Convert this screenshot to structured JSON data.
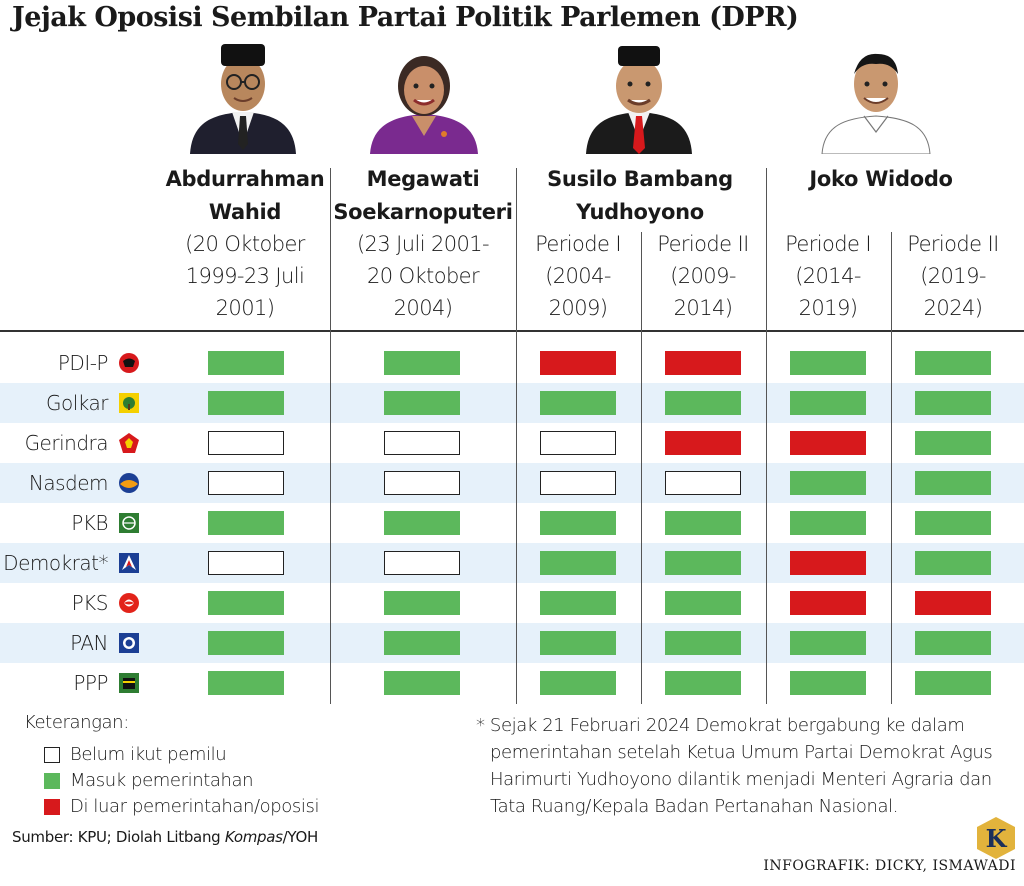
{
  "title": "Jejak Oposisi Sembilan Partai Politik Parlemen (DPR)",
  "presidents": [
    {
      "name_lines": [
        "Abdurrahman",
        "Wahid"
      ],
      "date_lines": [
        "(20 Oktober",
        "1999-23 Juli",
        "2001)"
      ]
    },
    {
      "name_lines": [
        "Megawati",
        "Soekarnoputeri"
      ],
      "date_lines": [
        "(23 Juli 2001-",
        "20 Oktober",
        "2004)"
      ]
    },
    {
      "name_lines": [
        "Susilo Bambang",
        "Yudhoyono"
      ],
      "periods": [
        {
          "label_lines": [
            "Periode I",
            "(2004-",
            "2009)"
          ]
        },
        {
          "label_lines": [
            "Periode II",
            "(2009-",
            "2014)"
          ]
        }
      ]
    },
    {
      "name_lines": [
        "Joko Widodo"
      ],
      "periods": [
        {
          "label_lines": [
            "Periode I",
            "(2014-",
            "2019)"
          ]
        },
        {
          "label_lines": [
            "Periode II",
            "(2019-",
            "2024)"
          ]
        }
      ]
    }
  ],
  "chart_data": {
    "type": "table",
    "columns": [
      "Abdurrahman Wahid (20 Oktober 1999-23 Juli 2001)",
      "Megawati Soekarnoputeri (23 Juli 2001-20 Oktober 2004)",
      "Susilo Bambang Yudhoyono Periode I (2004-2009)",
      "Susilo Bambang Yudhoyono Periode II (2009-2014)",
      "Joko Widodo Periode I (2014-2019)",
      "Joko Widodo Periode II (2019-2024)"
    ],
    "status_legend": {
      "none": "Belum ikut pemilu",
      "gov": "Masuk pemerintahan",
      "opp": "Di luar pemerintahan/oposisi"
    },
    "rows": [
      {
        "party": "PDI-P",
        "status": [
          "gov",
          "gov",
          "opp",
          "opp",
          "gov",
          "gov"
        ]
      },
      {
        "party": "Golkar",
        "status": [
          "gov",
          "gov",
          "gov",
          "gov",
          "gov",
          "gov"
        ]
      },
      {
        "party": "Gerindra",
        "status": [
          "none",
          "none",
          "none",
          "opp",
          "opp",
          "gov"
        ]
      },
      {
        "party": "Nasdem",
        "status": [
          "none",
          "none",
          "none",
          "none",
          "gov",
          "gov"
        ]
      },
      {
        "party": "PKB",
        "status": [
          "gov",
          "gov",
          "gov",
          "gov",
          "gov",
          "gov"
        ]
      },
      {
        "party": "Demokrat*",
        "status": [
          "none",
          "none",
          "gov",
          "gov",
          "opp",
          "gov"
        ]
      },
      {
        "party": "PKS",
        "status": [
          "gov",
          "gov",
          "gov",
          "gov",
          "opp",
          "opp"
        ]
      },
      {
        "party": "PAN",
        "status": [
          "gov",
          "gov",
          "gov",
          "gov",
          "gov",
          "gov"
        ]
      },
      {
        "party": "PPP",
        "status": [
          "gov",
          "gov",
          "gov",
          "gov",
          "gov",
          "gov"
        ]
      }
    ]
  },
  "colors": {
    "gov": "#5cb85c",
    "opp": "#d7191c",
    "none": "#ffffff",
    "band": "#e6f1fa",
    "border": "#222222"
  },
  "party_logos": [
    "pdip-bull-icon",
    "golkar-banyan-icon",
    "gerindra-garuda-icon",
    "nasdem-globe-icon",
    "pkb-globe-icon",
    "demokrat-star-icon",
    "pks-crescent-icon",
    "pan-sun-icon",
    "ppp-kaaba-icon"
  ],
  "legend": {
    "title": "Keterangan:",
    "items": [
      "Belum ikut pemilu",
      "Masuk pemerintahan",
      "Di luar pemerintahan/oposisi"
    ]
  },
  "source": {
    "prefix": "Sumber: KPU; Diolah Litbang ",
    "italic": "Kompas",
    "suffix": "/YOH"
  },
  "footnote": [
    "* Sejak 21 Februari 2024 Demokrat bergabung ke dalam",
    "pemerintahan setelah Ketua Umum Partai Demokrat Agus",
    "Harimurti Yudhoyono dilantik menjadi Menteri Agraria dan",
    "Tata Ruang/Kepala Badan Pertanahan Nasional."
  ],
  "credit": "INFOGRAFIK: DICKY, ISMAWADI",
  "logo_letter": "K"
}
